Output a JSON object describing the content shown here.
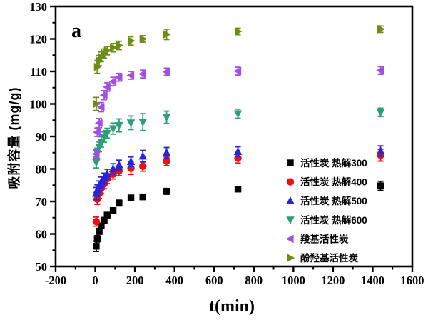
{
  "chart_data": {
    "type": "scatter",
    "panel_label": "a",
    "xlabel": "t(min)",
    "ylabel": "吸附容量 (mg/g)",
    "xlim": [
      -200,
      1600
    ],
    "ylim": [
      50,
      130
    ],
    "x_ticks": [
      -200,
      0,
      200,
      400,
      600,
      800,
      1000,
      1200,
      1400,
      1600
    ],
    "y_ticks": [
      50,
      60,
      70,
      80,
      90,
      100,
      110,
      120,
      130
    ],
    "x_minor_step": 100,
    "y_minor_step": 5,
    "grid": false,
    "error_bars": true,
    "legend_position": "inside-right",
    "x": [
      5,
      10,
      20,
      30,
      45,
      60,
      90,
      120,
      180,
      240,
      360,
      720,
      1440
    ],
    "series": [
      {
        "name": "活性炭 热解300",
        "id": "activated-carbon-pyrolysis-300",
        "marker": "square",
        "color": "#000000",
        "values": [
          56.2,
          58.5,
          60.8,
          62.5,
          64.2,
          65.8,
          67.2,
          69.5,
          71.1,
          71.4,
          73.1,
          73.8,
          74.8
        ],
        "errors": [
          1.6,
          1.0,
          0.9,
          0.8,
          0.8,
          0.8,
          0.8,
          0.9,
          0.8,
          0.8,
          0.9,
          0.8,
          1.4
        ]
      },
      {
        "name": "活性炭 热解400",
        "id": "activated-carbon-pyrolysis-400",
        "marker": "circle",
        "color": "#ee0f0f",
        "values": [
          63.8,
          70.7,
          72.4,
          74.0,
          75.5,
          77.0,
          78.4,
          79.4,
          80.2,
          80.8,
          82.4,
          83.3,
          84.2
        ],
        "errors": [
          1.4,
          1.6,
          1.5,
          1.5,
          1.6,
          1.5,
          1.5,
          1.5,
          1.9,
          1.5,
          1.4,
          1.5,
          1.8
        ]
      },
      {
        "name": "活性炭 热解500",
        "id": "activated-carbon-pyrolysis-500",
        "marker": "triangle-up",
        "color": "#2626d8",
        "values": [
          72.4,
          73.5,
          74.8,
          76.0,
          77.2,
          78.4,
          80.0,
          81.2,
          82.2,
          83.9,
          85.0,
          85.3,
          85.5
        ],
        "errors": [
          1.9,
          1.6,
          1.5,
          1.5,
          1.5,
          1.5,
          1.6,
          1.5,
          1.5,
          1.8,
          1.6,
          1.5,
          1.6
        ]
      },
      {
        "name": "活性炭 热解600",
        "id": "activated-carbon-pyrolysis-600",
        "marker": "triangle-down",
        "color": "#2e9e78",
        "values": [
          82.0,
          84.8,
          86.8,
          88.3,
          89.8,
          91.0,
          92.4,
          93.4,
          94.2,
          94.4,
          95.9,
          97.0,
          97.4
        ],
        "errors": [
          1.7,
          1.6,
          1.5,
          1.6,
          1.6,
          1.5,
          1.7,
          2.0,
          2.1,
          2.6,
          1.9,
          1.4,
          1.3
        ]
      },
      {
        "name": "羧基活性炭",
        "id": "carboxyl-activated-carbon",
        "marker": "triangle-left",
        "color": "#a24de4",
        "values": [
          84.6,
          91.3,
          94.1,
          99.0,
          102.7,
          105.2,
          106.9,
          108.2,
          108.8,
          109.2,
          109.9,
          110.1,
          110.3
        ],
        "errors": [
          1.3,
          1.3,
          1.4,
          1.4,
          1.4,
          1.3,
          1.3,
          1.2,
          1.2,
          1.2,
          1.1,
          1.2,
          1.2
        ]
      },
      {
        "name": "酚羟基活性炭",
        "id": "phenolic-hydroxyl-activated-carbon",
        "marker": "triangle-right",
        "color": "#6f8c12",
        "values": [
          100.0,
          111.4,
          113.3,
          114.5,
          115.5,
          116.4,
          117.3,
          118.0,
          119.4,
          120.0,
          121.4,
          122.3,
          123.0
        ],
        "errors": [
          2.0,
          2.0,
          1.6,
          1.5,
          1.4,
          1.3,
          1.3,
          1.3,
          1.3,
          1.0,
          1.6,
          1.0,
          1.0
        ]
      }
    ]
  }
}
